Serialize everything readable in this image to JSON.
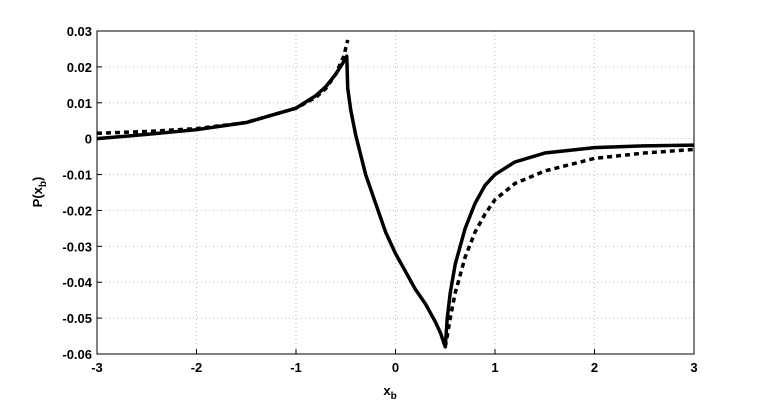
{
  "chart_data": {
    "type": "line",
    "x_label": [
      "x",
      "b"
    ],
    "y_label": [
      "P(x",
      "b",
      ")"
    ],
    "xlim": [
      -3,
      3
    ],
    "xticks": [
      -3,
      -2,
      -1,
      0,
      1,
      2,
      3
    ],
    "ylim": [
      -0.06,
      0.03
    ],
    "yticks": [
      -0.06,
      -0.05,
      -0.04,
      -0.03,
      -0.02,
      -0.01,
      0,
      0.01,
      0.02,
      0.03
    ],
    "grid": true,
    "series": [
      {
        "color": "#000000",
        "dash": false,
        "x": [
          -3,
          -2.5,
          -2,
          -1.5,
          -1,
          -0.8,
          -0.7,
          -0.6,
          -0.52,
          -0.49,
          -0.48,
          -0.45,
          -0.4,
          -0.3,
          -0.2,
          -0.1,
          0,
          0.1,
          0.2,
          0.3,
          0.4,
          0.45,
          0.5,
          0.52,
          0.55,
          0.6,
          0.7,
          0.8,
          0.9,
          1,
          1.2,
          1.5,
          2,
          2.5,
          3
        ],
        "values": [
          0,
          0.0012,
          0.0025,
          0.0045,
          0.0085,
          0.012,
          0.0145,
          0.018,
          0.0215,
          0.023,
          0.014,
          0.008,
          0.001,
          -0.01,
          -0.018,
          -0.026,
          -0.032,
          -0.037,
          -0.042,
          -0.046,
          -0.051,
          -0.054,
          -0.058,
          -0.05,
          -0.043,
          -0.035,
          -0.025,
          -0.018,
          -0.013,
          -0.01,
          -0.0065,
          -0.004,
          -0.0025,
          -0.002,
          -0.0018
        ]
      },
      {
        "color": "#000000",
        "dash": true,
        "x": [
          -3,
          -2.5,
          -2,
          -1.5,
          -1,
          -0.8,
          -0.7,
          -0.6,
          -0.52,
          -0.48,
          0,
          0.5,
          0.52,
          0.55,
          0.6,
          0.7,
          0.8,
          0.9,
          1,
          1.2,
          1.5,
          2,
          2.5,
          3
        ],
        "values": [
          0.0015,
          0.002,
          0.0028,
          0.0045,
          0.0085,
          0.0115,
          0.014,
          0.018,
          0.023,
          0.0275,
          null,
          -0.058,
          -0.055,
          -0.05,
          -0.043,
          -0.033,
          -0.026,
          -0.021,
          -0.017,
          -0.0125,
          -0.009,
          -0.0055,
          -0.004,
          -0.003
        ]
      }
    ]
  }
}
